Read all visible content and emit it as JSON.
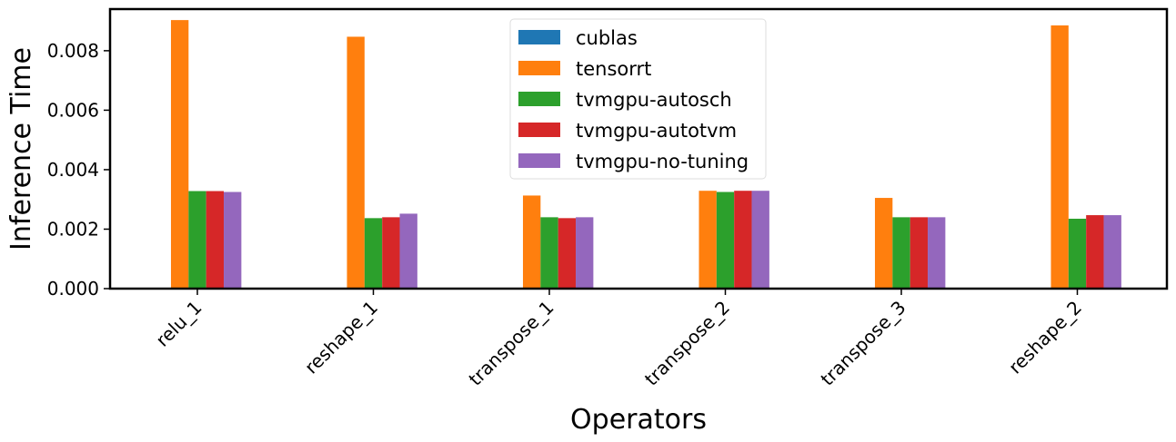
{
  "chart_data": {
    "type": "bar",
    "xlabel": "Operators",
    "ylabel": "Inference Time",
    "categories": [
      "relu_1",
      "reshape_1",
      "transpose_1",
      "transpose_2",
      "transpose_3",
      "reshape_2"
    ],
    "ylim": [
      0,
      0.0094
    ],
    "yticks": [
      "0.000",
      "0.002",
      "0.004",
      "0.006",
      "0.008"
    ],
    "ytick_values": [
      0,
      0.002,
      0.004,
      0.006,
      0.008
    ],
    "legend_position": "top-center",
    "grid": false,
    "series": [
      {
        "name": "cublas",
        "color": "#1f77b4",
        "values": [
          0,
          0,
          0,
          0,
          0,
          0
        ]
      },
      {
        "name": "tensorrt",
        "color": "#ff7f0e",
        "values": [
          0.00903,
          0.00847,
          0.00313,
          0.00329,
          0.00305,
          0.00885
        ]
      },
      {
        "name": "tvmgpu-autosch",
        "color": "#2ca02c",
        "values": [
          0.00328,
          0.00237,
          0.0024,
          0.00325,
          0.0024,
          0.00235
        ]
      },
      {
        "name": "tvmgpu-autotvm",
        "color": "#d62728",
        "values": [
          0.00328,
          0.0024,
          0.00237,
          0.00329,
          0.0024,
          0.00247
        ]
      },
      {
        "name": "tvmgpu-no-tuning",
        "color": "#9467bd",
        "values": [
          0.00325,
          0.00252,
          0.0024,
          0.00329,
          0.0024,
          0.00247
        ]
      }
    ]
  }
}
